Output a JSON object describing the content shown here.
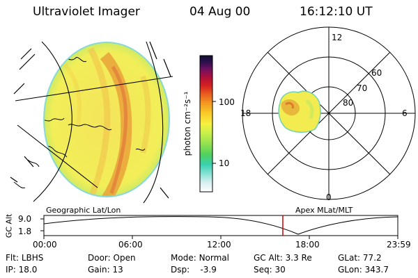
{
  "header": {
    "title": "Ultraviolet Imager",
    "date": "04 Aug 00",
    "time": "16:12:10 UT"
  },
  "colorbar": {
    "unit_label": "photon cm⁻²s⁻¹",
    "ticks": [
      "100",
      "10"
    ]
  },
  "polar_plot": {
    "radial_labels": [
      "60",
      "70",
      "80"
    ],
    "mlt_labels": [
      "12",
      "18",
      "6",
      "0"
    ]
  },
  "projection_labels": {
    "left": "Geographic Lat/Lon",
    "right": "Apex MLat/MLT"
  },
  "altitude_plot": {
    "axis_label": "GC Alt",
    "y_ticks": [
      "9.0",
      "1.8"
    ],
    "x_ticks": [
      "00:00",
      "06:00",
      "12:00",
      "18:00",
      "23:59"
    ],
    "current_time_fraction": 0.6751
  },
  "info": {
    "row1": [
      {
        "key": "Flt:",
        "value": "LBHS"
      },
      {
        "key": "Door:",
        "value": "Open"
      },
      {
        "key": "Mode:",
        "value": "Normal"
      },
      {
        "key": "GC Alt:",
        "value": "3.3 Re"
      },
      {
        "key": "GLat:",
        "value": "77.2"
      }
    ],
    "row2": [
      {
        "key": "IP:",
        "value": "18.0"
      },
      {
        "key": "Gain:",
        "value": "13"
      },
      {
        "key": "Dsp:",
        "value": "-3.9"
      },
      {
        "key": "Seq:",
        "value": "30"
      },
      {
        "key": "GLon:",
        "value": "343.7"
      }
    ]
  },
  "colors": {
    "disk_base": "#f6ef4c",
    "aurora_band": "#e8a43a",
    "marker": "#cc0000"
  }
}
